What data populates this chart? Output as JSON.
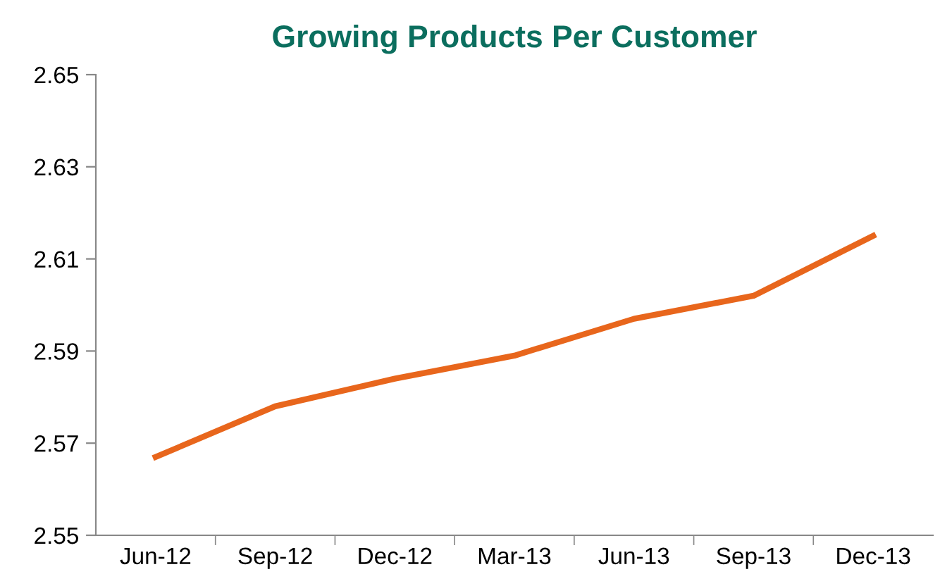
{
  "chart_data": {
    "type": "line",
    "title": "Growing Products Per Customer",
    "categories": [
      "Jun-12",
      "Sep-12",
      "Dec-12",
      "Mar-13",
      "Jun-13",
      "Sep-13",
      "Dec-13"
    ],
    "series": [
      {
        "color": "#e8661c",
        "values": [
          2.567,
          2.578,
          2.584,
          2.589,
          2.597,
          2.602,
          2.615
        ]
      }
    ],
    "ylim": [
      2.55,
      2.65
    ],
    "yticks": [
      {
        "value": 2.55,
        "label": "2.55"
      },
      {
        "value": 2.57,
        "label": "2.57"
      },
      {
        "value": 2.59,
        "label": "2.59"
      },
      {
        "value": 2.61,
        "label": "2.61"
      },
      {
        "value": 2.63,
        "label": "2.63"
      },
      {
        "value": 2.65,
        "label": "2.65"
      }
    ],
    "grid": false,
    "legend": false,
    "marker": "none",
    "line_style": "solid"
  }
}
